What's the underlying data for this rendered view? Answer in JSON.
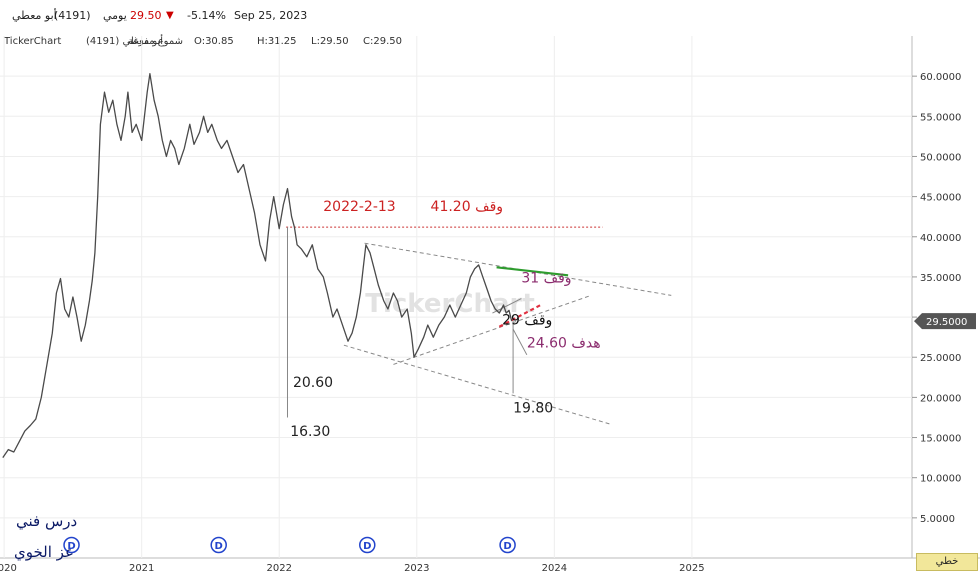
{
  "header": {
    "symbol": "أبو معطي",
    "code": "(4191)",
    "period": "يومي",
    "price": "29.50",
    "change": "-5.14%",
    "date": "Sep 25, 2023",
    "down_color": "#cc0000"
  },
  "subheader": {
    "brand": "TickerChart",
    "symbol": "أبو معطي (4191)",
    "style": "شموع مفرغة",
    "open": "O:30.85",
    "high": "H:31.25",
    "low": "L:29.50",
    "close": "C:29.50"
  },
  "watermark": "TickerChart",
  "signature": {
    "line1": "درس فني",
    "line2": "عز الخوي"
  },
  "lang_button": "خطي",
  "chart_data": {
    "type": "line",
    "title": "",
    "xlabel": "",
    "ylabel": "",
    "ylim": [
      0,
      65
    ],
    "grid": true,
    "y_ticks": [
      "60.0000",
      "55.0000",
      "50.0000",
      "45.0000",
      "40.0000",
      "35.0000",
      "30.0000",
      "25.0000",
      "20.0000",
      "15.0000",
      "10.0000",
      "5.0000"
    ],
    "y_tick_values": [
      60,
      55,
      50,
      45,
      40,
      35,
      30,
      25,
      20,
      15,
      10,
      5
    ],
    "x_ticks": [
      "2020",
      "2021",
      "2022",
      "2023",
      "2024",
      "2025"
    ],
    "x_tick_values": [
      2020,
      2021,
      2022,
      2023,
      2024,
      2025
    ],
    "xlim": [
      2019.97,
      2026.6
    ],
    "last_price_label": "29.5000",
    "series": [
      {
        "values": [
          [
            2019.99,
            12.5
          ],
          [
            2020.03,
            13.5
          ],
          [
            2020.07,
            13.2
          ],
          [
            2020.11,
            14.5
          ],
          [
            2020.15,
            15.8
          ],
          [
            2020.19,
            16.5
          ],
          [
            2020.23,
            17.3
          ],
          [
            2020.27,
            20
          ],
          [
            2020.31,
            24
          ],
          [
            2020.35,
            28
          ],
          [
            2020.38,
            33
          ],
          [
            2020.41,
            34.8
          ],
          [
            2020.44,
            31
          ],
          [
            2020.47,
            30
          ],
          [
            2020.5,
            32.5
          ],
          [
            2020.53,
            30
          ],
          [
            2020.56,
            27
          ],
          [
            2020.59,
            29
          ],
          [
            2020.62,
            32
          ],
          [
            2020.64,
            34.5
          ],
          [
            2020.66,
            38
          ],
          [
            2020.68,
            45
          ],
          [
            2020.7,
            54
          ],
          [
            2020.73,
            58
          ],
          [
            2020.76,
            55.5
          ],
          [
            2020.79,
            57
          ],
          [
            2020.82,
            54
          ],
          [
            2020.85,
            52
          ],
          [
            2020.88,
            55
          ],
          [
            2020.9,
            58
          ],
          [
            2020.93,
            53
          ],
          [
            2020.96,
            54
          ],
          [
            2021.0,
            52
          ],
          [
            2021.04,
            58
          ],
          [
            2021.06,
            60.3
          ],
          [
            2021.09,
            57
          ],
          [
            2021.12,
            55
          ],
          [
            2021.15,
            52
          ],
          [
            2021.18,
            50
          ],
          [
            2021.21,
            52
          ],
          [
            2021.24,
            51
          ],
          [
            2021.27,
            49
          ],
          [
            2021.31,
            51
          ],
          [
            2021.35,
            54
          ],
          [
            2021.38,
            51.5
          ],
          [
            2021.42,
            53
          ],
          [
            2021.45,
            55
          ],
          [
            2021.48,
            53
          ],
          [
            2021.51,
            54
          ],
          [
            2021.55,
            52
          ],
          [
            2021.58,
            51
          ],
          [
            2021.62,
            52
          ],
          [
            2021.66,
            50
          ],
          [
            2021.7,
            48
          ],
          [
            2021.74,
            49
          ],
          [
            2021.78,
            46
          ],
          [
            2021.82,
            43
          ],
          [
            2021.86,
            39
          ],
          [
            2021.9,
            37
          ],
          [
            2021.93,
            42
          ],
          [
            2021.96,
            45
          ],
          [
            2022.0,
            41
          ],
          [
            2022.03,
            44
          ],
          [
            2022.06,
            46
          ],
          [
            2022.09,
            42.5
          ],
          [
            2022.11,
            41.2
          ],
          [
            2022.13,
            39
          ],
          [
            2022.16,
            38.5
          ],
          [
            2022.2,
            37.5
          ],
          [
            2022.24,
            39
          ],
          [
            2022.28,
            36
          ],
          [
            2022.32,
            35
          ],
          [
            2022.35,
            33
          ],
          [
            2022.39,
            30
          ],
          [
            2022.42,
            31
          ],
          [
            2022.46,
            29
          ],
          [
            2022.5,
            27
          ],
          [
            2022.53,
            28
          ],
          [
            2022.56,
            30
          ],
          [
            2022.59,
            33
          ],
          [
            2022.61,
            36
          ],
          [
            2022.63,
            39
          ],
          [
            2022.66,
            38
          ],
          [
            2022.69,
            36
          ],
          [
            2022.72,
            34
          ],
          [
            2022.76,
            32
          ],
          [
            2022.79,
            31
          ],
          [
            2022.83,
            33
          ],
          [
            2022.86,
            32
          ],
          [
            2022.89,
            30
          ],
          [
            2022.93,
            31
          ],
          [
            2022.96,
            28
          ],
          [
            2022.98,
            25
          ],
          [
            2023.01,
            26
          ],
          [
            2023.05,
            27.5
          ],
          [
            2023.08,
            29
          ],
          [
            2023.12,
            27.5
          ],
          [
            2023.16,
            29
          ],
          [
            2023.2,
            30
          ],
          [
            2023.24,
            31.5
          ],
          [
            2023.28,
            30
          ],
          [
            2023.32,
            31.5
          ],
          [
            2023.36,
            33
          ],
          [
            2023.39,
            35
          ],
          [
            2023.42,
            36
          ],
          [
            2023.45,
            36.5
          ],
          [
            2023.48,
            35
          ],
          [
            2023.51,
            33.5
          ],
          [
            2023.54,
            32
          ],
          [
            2023.57,
            31
          ],
          [
            2023.6,
            30.5
          ],
          [
            2023.63,
            31.5
          ],
          [
            2023.65,
            30.5
          ],
          [
            2023.67,
            30.85
          ],
          [
            2023.69,
            29.5
          ]
        ]
      }
    ],
    "annotations": [
      {
        "text": "2022-2-13",
        "kind": "date"
      },
      {
        "text": "وقف 41.20",
        "kind": "stop"
      },
      {
        "text": "وقف 31",
        "kind": "stop"
      },
      {
        "text": "وقف 29",
        "kind": "stop"
      },
      {
        "text": "هدف 24.60",
        "kind": "target"
      },
      {
        "text": "20.60",
        "kind": "level"
      },
      {
        "text": "16.30",
        "kind": "level"
      },
      {
        "text": "19.80",
        "kind": "level"
      }
    ],
    "lines": [
      {
        "kind": "stop_level",
        "from": [
          2022.05,
          41.2
        ],
        "to": [
          2024.35,
          41.2
        ],
        "color": "#cc3333",
        "dash": true
      },
      {
        "kind": "upper_channel",
        "from": [
          2022.62,
          39.2
        ],
        "to": [
          2024.85,
          32.7
        ],
        "color": "#888888",
        "dash": true
      },
      {
        "kind": "lower_channel",
        "from": [
          2022.47,
          26.5
        ],
        "to": [
          2024.4,
          16.7
        ],
        "color": "#888888",
        "dash": true
      },
      {
        "kind": "triangle_support",
        "from": [
          2022.83,
          24.1
        ],
        "to": [
          2024.25,
          32.6
        ],
        "color": "#888888",
        "dash": true
      },
      {
        "kind": "green_segment",
        "from": [
          2023.58,
          36.2
        ],
        "to": [
          2024.1,
          35.2
        ],
        "color": "#2e9c2e",
        "dash": false
      },
      {
        "kind": "red_segment",
        "from": [
          2023.6,
          28.8
        ],
        "to": [
          2023.9,
          31.5
        ],
        "color": "#e03040",
        "dash": true
      },
      {
        "kind": "inner_line",
        "from": [
          2023.55,
          30.5
        ],
        "to": [
          2023.76,
          32.3
        ],
        "color": "#888888",
        "dash": false
      },
      {
        "kind": "drop_1",
        "from": [
          2022.06,
          41.2
        ],
        "to": [
          2022.06,
          17.5
        ],
        "color": "#888888",
        "dash": false
      },
      {
        "kind": "drop_2",
        "from": [
          2023.7,
          29.5
        ],
        "to": [
          2023.7,
          20.5
        ],
        "color": "#888888",
        "dash": false
      },
      {
        "kind": "target_pointer",
        "from": [
          2023.7,
          28.5
        ],
        "to": [
          2023.8,
          25.3
        ],
        "color": "#888888",
        "dash": false
      }
    ],
    "dividend_markers": [
      2020.49,
      2021.56,
      2022.64,
      2023.66
    ]
  }
}
